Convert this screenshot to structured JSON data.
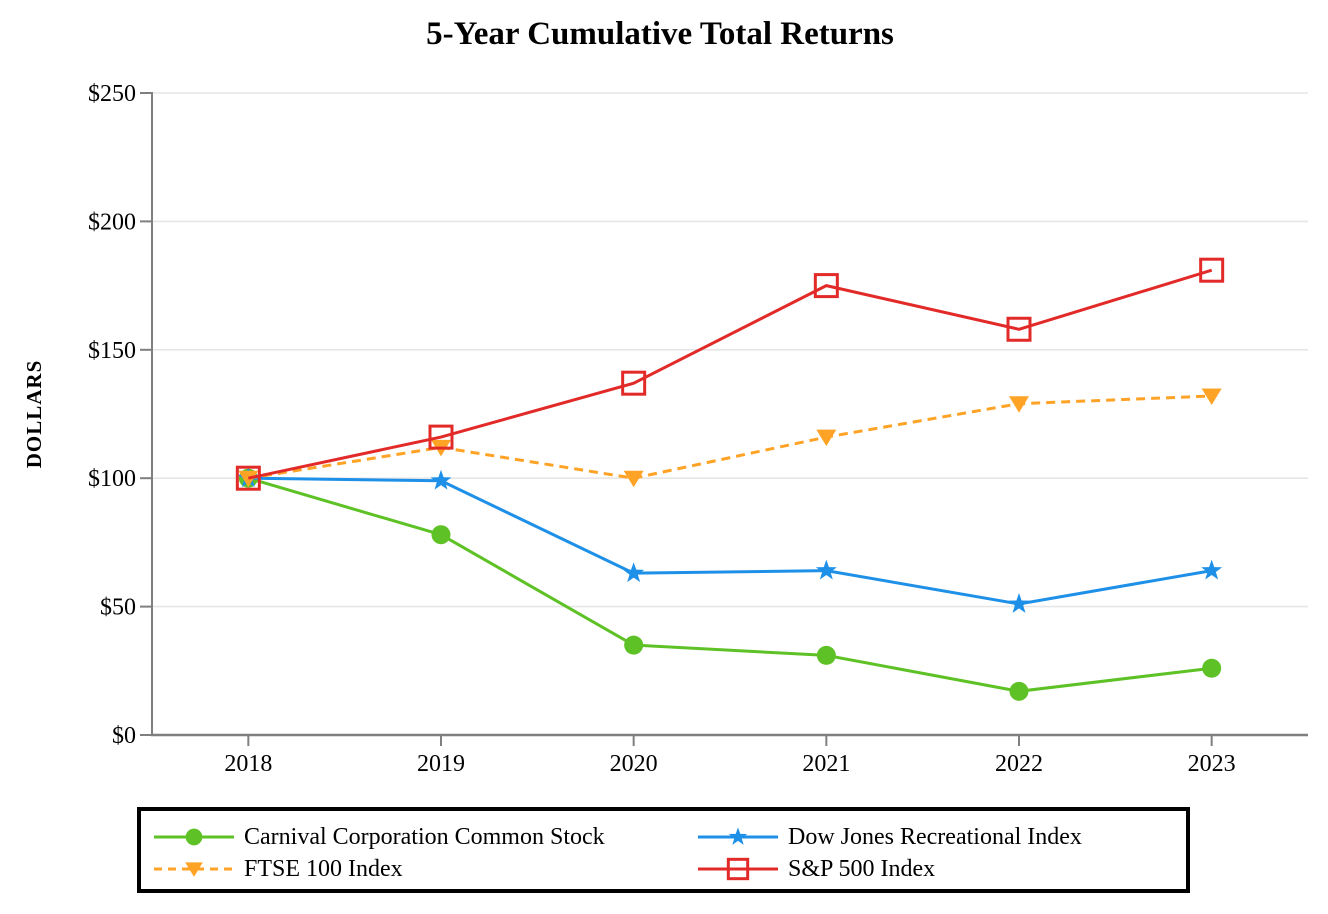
{
  "title": "5-Year Cumulative Total Returns",
  "chart_data": {
    "type": "line",
    "x_labels": [
      "2018",
      "2019",
      "2020",
      "2021",
      "2022",
      "2023"
    ],
    "ylabel": "DOLLARS",
    "ylim": [
      0,
      250
    ],
    "ytick_step": 50,
    "ytick_labels": [
      "$0",
      "$50",
      "$100",
      "$150",
      "$200",
      "$250"
    ],
    "grid": true,
    "legend_position": "bottom",
    "series": [
      {
        "name": "Carnival Corporation Common Stock",
        "marker": "circle",
        "line_style": "solid",
        "color": "#5EC226",
        "values": [
          100,
          78,
          35,
          31,
          17,
          26
        ]
      },
      {
        "name": "Dow Jones Recreational Index",
        "marker": "star",
        "line_style": "solid",
        "color": "#1E90E8",
        "values": [
          100,
          99,
          63,
          64,
          51,
          64
        ]
      },
      {
        "name": "FTSE 100 Index",
        "marker": "triangle-down",
        "line_style": "dashed",
        "color": "#FFA326",
        "values": [
          100,
          112,
          100,
          116,
          129,
          132
        ]
      },
      {
        "name": "S&P 500 Index",
        "marker": "square-open",
        "line_style": "solid",
        "color": "#E22A28",
        "values": [
          100,
          116,
          137,
          175,
          158,
          181
        ]
      }
    ],
    "colors": {
      "axis": "#7F7F7F",
      "gridline": "#E6E6E6",
      "text": "#000000",
      "background": "#FFFFFF"
    }
  }
}
